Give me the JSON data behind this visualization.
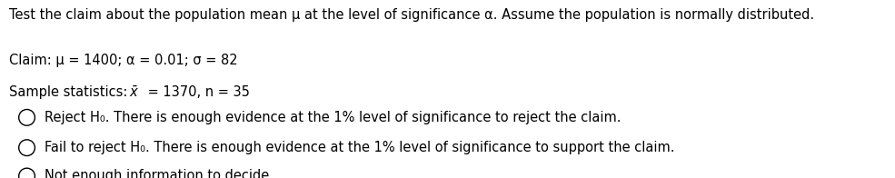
{
  "background_color": "#ffffff",
  "fig_width": 9.85,
  "fig_height": 1.96,
  "dpi": 100,
  "header_text": "Test the claim about the population mean μ at the level of significance α. Assume the population is normally distributed.",
  "line1_text": "Claim: μ = 1400; α = 0.01; σ = 82",
  "line2_label": "Sample statistics: ",
  "line2_rest": " = 1370, n = 35",
  "option1_text": "Reject H₀. There is enough evidence at the 1% level of significance to reject the claim.",
  "option2_text": "Fail to reject H₀. There is enough evidence at the 1% level of significance to support the claim.",
  "option3_text": "Not enough information to decide.",
  "text_color": "#000000",
  "header_fontsize": 10.5,
  "body_fontsize": 10.5,
  "font_family": "DejaVu Sans"
}
